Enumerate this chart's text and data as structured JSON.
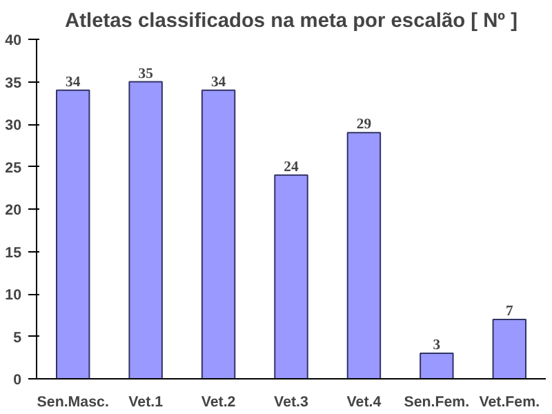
{
  "chart_data": {
    "type": "bar",
    "title": "Atletas classificados na meta por escalão [ Nº ]",
    "categories": [
      "Sen.Masc.",
      "Vet.1",
      "Vet.2",
      "Vet.3",
      "Vet.4",
      "Sen.Fem.",
      "Vet.Fem."
    ],
    "values": [
      34,
      35,
      34,
      24,
      29,
      3,
      7
    ],
    "color": "#9999ff",
    "ylim": [
      0,
      40
    ],
    "yticks": [
      0,
      5,
      10,
      15,
      20,
      25,
      30,
      35,
      40
    ],
    "grid": false,
    "data_labels": true
  }
}
